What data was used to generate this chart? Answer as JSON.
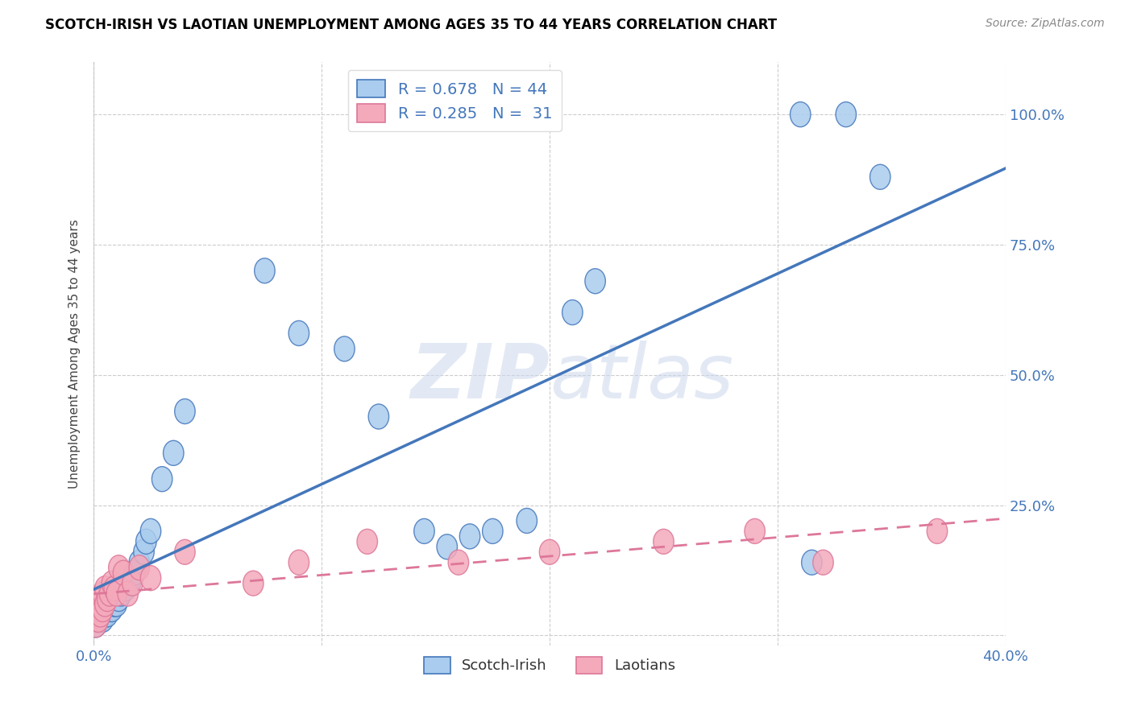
{
  "title": "SCOTCH-IRISH VS LAOTIAN UNEMPLOYMENT AMONG AGES 35 TO 44 YEARS CORRELATION CHART",
  "source": "Source: ZipAtlas.com",
  "ylabel": "Unemployment Among Ages 35 to 44 years",
  "xlim": [
    0.0,
    0.4
  ],
  "ylim": [
    -0.02,
    1.1
  ],
  "xticks": [
    0.0,
    0.1,
    0.2,
    0.3,
    0.4
  ],
  "xtick_labels": [
    "0.0%",
    "",
    "",
    "",
    "40.0%"
  ],
  "yticks": [
    0.0,
    0.25,
    0.5,
    0.75,
    1.0
  ],
  "ytick_labels": [
    "",
    "25.0%",
    "50.0%",
    "75.0%",
    "100.0%"
  ],
  "scotch_irish_color": "#aaccee",
  "laotian_color": "#f4aabb",
  "scotch_irish_line_color": "#4477bb",
  "laotian_line_color": "#dd7799",
  "watermark": "ZIPatlas",
  "scotch_irish_x": [
    0.001,
    0.002,
    0.002,
    0.003,
    0.003,
    0.003,
    0.004,
    0.004,
    0.005,
    0.005,
    0.006,
    0.007,
    0.007,
    0.008,
    0.009,
    0.01,
    0.011,
    0.012,
    0.014,
    0.016,
    0.017,
    0.018,
    0.02,
    0.022,
    0.023,
    0.025,
    0.03,
    0.035,
    0.04,
    0.075,
    0.09,
    0.11,
    0.125,
    0.145,
    0.155,
    0.165,
    0.175,
    0.19,
    0.21,
    0.22,
    0.31,
    0.315,
    0.33,
    0.345
  ],
  "scotch_irish_y": [
    0.02,
    0.03,
    0.04,
    0.03,
    0.04,
    0.05,
    0.03,
    0.05,
    0.04,
    0.06,
    0.04,
    0.05,
    0.06,
    0.05,
    0.06,
    0.06,
    0.07,
    0.08,
    0.09,
    0.1,
    0.11,
    0.12,
    0.14,
    0.16,
    0.18,
    0.2,
    0.3,
    0.35,
    0.43,
    0.7,
    0.58,
    0.55,
    0.42,
    0.2,
    0.17,
    0.19,
    0.2,
    0.22,
    0.62,
    0.68,
    1.0,
    0.14,
    1.0,
    0.88
  ],
  "laotian_x": [
    0.001,
    0.001,
    0.002,
    0.002,
    0.003,
    0.003,
    0.004,
    0.004,
    0.005,
    0.005,
    0.006,
    0.007,
    0.008,
    0.009,
    0.01,
    0.011,
    0.013,
    0.015,
    0.017,
    0.02,
    0.025,
    0.04,
    0.07,
    0.09,
    0.12,
    0.16,
    0.2,
    0.25,
    0.29,
    0.32,
    0.37
  ],
  "laotian_y": [
    0.02,
    0.04,
    0.03,
    0.05,
    0.04,
    0.07,
    0.05,
    0.08,
    0.06,
    0.09,
    0.07,
    0.08,
    0.1,
    0.09,
    0.08,
    0.13,
    0.12,
    0.08,
    0.1,
    0.13,
    0.11,
    0.16,
    0.1,
    0.14,
    0.18,
    0.14,
    0.16,
    0.18,
    0.2,
    0.14,
    0.2
  ]
}
